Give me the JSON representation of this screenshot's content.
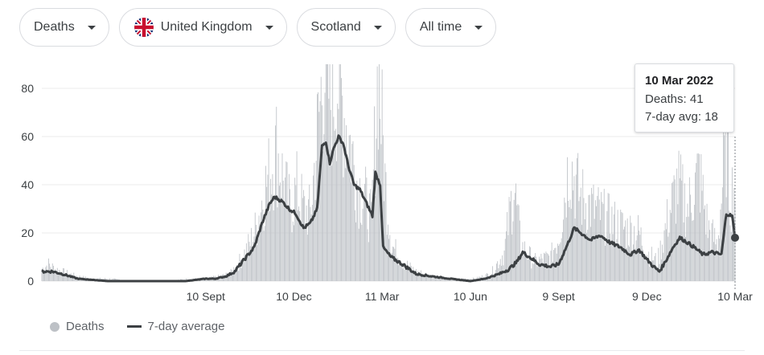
{
  "filters": [
    {
      "label": "Deaths"
    },
    {
      "label": "United Kingdom",
      "icon": "uk-flag-icon"
    },
    {
      "label": "Scotland"
    },
    {
      "label": "All time"
    }
  ],
  "tooltip": {
    "date": "10 Mar 2022",
    "deaths_line": "Deaths: 41",
    "avg_line": "7-day avg: 18"
  },
  "legend": {
    "deaths": "Deaths",
    "avg": "7-day average"
  },
  "colors": {
    "bars": "#bdc1c6",
    "line": "#3c4043",
    "grid": "#ebebeb"
  },
  "chart_data": {
    "type": "bar",
    "x_axis_type": "date",
    "x_range": [
      "2020-03-25",
      "2022-03-10"
    ],
    "y_range": [
      0,
      90
    ],
    "y_ticks": [
      0,
      20,
      40,
      60,
      80
    ],
    "x_ticks": [
      {
        "date": "2020-09-10",
        "label": "10 Sept"
      },
      {
        "date": "2020-12-10",
        "label": "10 Dec"
      },
      {
        "date": "2021-03-11",
        "label": "11 Mar"
      },
      {
        "date": "2021-06-10",
        "label": "10 Jun"
      },
      {
        "date": "2021-09-09",
        "label": "9 Sept"
      },
      {
        "date": "2021-12-09",
        "label": "9 Dec"
      },
      {
        "date": "2022-03-10",
        "label": "10 Mar"
      }
    ],
    "highlight": {
      "date": "2022-03-10",
      "deaths": 41,
      "avg": 18
    },
    "series": [
      {
        "name": "Deaths",
        "kind": "bars",
        "points": [
          [
            "2020-03-25",
            5
          ],
          [
            "2020-04-01",
            7
          ],
          [
            "2020-04-08",
            5
          ],
          [
            "2020-04-15",
            4
          ],
          [
            "2020-04-22",
            3
          ],
          [
            "2020-05-01",
            2
          ],
          [
            "2020-05-15",
            1
          ],
          [
            "2020-06-01",
            1
          ],
          [
            "2020-07-01",
            0
          ],
          [
            "2020-08-01",
            0
          ],
          [
            "2020-08-25",
            1
          ],
          [
            "2020-09-10",
            1
          ],
          [
            "2020-09-25",
            2
          ],
          [
            "2020-10-05",
            3
          ],
          [
            "2020-10-15",
            8
          ],
          [
            "2020-10-25",
            15
          ],
          [
            "2020-11-01",
            22
          ],
          [
            "2020-11-08",
            35
          ],
          [
            "2020-11-15",
            45
          ],
          [
            "2020-11-22",
            55
          ],
          [
            "2020-11-29",
            42
          ],
          [
            "2020-12-06",
            30
          ],
          [
            "2020-12-13",
            38
          ],
          [
            "2020-12-20",
            30
          ],
          [
            "2020-12-27",
            28
          ],
          [
            "2021-01-03",
            60
          ],
          [
            "2021-01-10",
            90
          ],
          [
            "2021-01-17",
            75
          ],
          [
            "2021-01-24",
            85
          ],
          [
            "2021-01-31",
            70
          ],
          [
            "2021-02-07",
            55
          ],
          [
            "2021-02-14",
            40
          ],
          [
            "2021-02-21",
            35
          ],
          [
            "2021-02-28",
            25
          ],
          [
            "2021-03-07",
            90
          ],
          [
            "2021-03-14",
            42
          ],
          [
            "2021-03-21",
            15
          ],
          [
            "2021-04-01",
            8
          ],
          [
            "2021-04-15",
            4
          ],
          [
            "2021-05-01",
            2
          ],
          [
            "2021-05-15",
            1
          ],
          [
            "2021-06-01",
            1
          ],
          [
            "2021-06-15",
            1
          ],
          [
            "2021-07-01",
            3
          ],
          [
            "2021-07-15",
            12
          ],
          [
            "2021-07-25",
            40
          ],
          [
            "2021-08-01",
            15
          ],
          [
            "2021-08-15",
            8
          ],
          [
            "2021-09-01",
            10
          ],
          [
            "2021-09-10",
            20
          ],
          [
            "2021-09-20",
            50
          ],
          [
            "2021-10-01",
            35
          ],
          [
            "2021-10-15",
            30
          ],
          [
            "2021-11-01",
            25
          ],
          [
            "2021-11-15",
            22
          ],
          [
            "2021-12-01",
            20
          ],
          [
            "2021-12-09",
            12
          ],
          [
            "2021-12-20",
            8
          ],
          [
            "2022-01-01",
            28
          ],
          [
            "2022-01-10",
            40
          ],
          [
            "2022-01-20",
            30
          ],
          [
            "2022-02-01",
            45
          ],
          [
            "2022-02-10",
            22
          ],
          [
            "2022-02-20",
            15
          ],
          [
            "2022-03-01",
            60
          ],
          [
            "2022-03-05",
            35
          ],
          [
            "2022-03-10",
            41
          ]
        ]
      },
      {
        "name": "7-day average",
        "kind": "line",
        "points": [
          [
            "2020-03-25",
            4
          ],
          [
            "2020-04-05",
            4
          ],
          [
            "2020-04-15",
            3
          ],
          [
            "2020-05-01",
            1
          ],
          [
            "2020-06-01",
            0
          ],
          [
            "2020-08-20",
            0
          ],
          [
            "2020-09-10",
            1
          ],
          [
            "2020-09-20",
            1
          ],
          [
            "2020-10-01",
            2
          ],
          [
            "2020-10-10",
            4
          ],
          [
            "2020-10-20",
            9
          ],
          [
            "2020-10-30",
            14
          ],
          [
            "2020-11-08",
            25
          ],
          [
            "2020-11-15",
            32
          ],
          [
            "2020-11-20",
            35
          ],
          [
            "2020-11-28",
            33
          ],
          [
            "2020-12-05",
            30
          ],
          [
            "2020-12-12",
            28
          ],
          [
            "2020-12-20",
            22
          ],
          [
            "2020-12-27",
            24
          ],
          [
            "2021-01-03",
            30
          ],
          [
            "2021-01-08",
            56
          ],
          [
            "2021-01-12",
            58
          ],
          [
            "2021-01-16",
            49
          ],
          [
            "2021-01-20",
            55
          ],
          [
            "2021-01-25",
            60
          ],
          [
            "2021-01-30",
            57
          ],
          [
            "2021-02-04",
            48
          ],
          [
            "2021-02-10",
            40
          ],
          [
            "2021-02-16",
            38
          ],
          [
            "2021-02-22",
            33
          ],
          [
            "2021-03-01",
            27
          ],
          [
            "2021-03-04",
            45
          ],
          [
            "2021-03-09",
            40
          ],
          [
            "2021-03-12",
            14
          ],
          [
            "2021-03-20",
            10
          ],
          [
            "2021-04-01",
            7
          ],
          [
            "2021-04-15",
            3
          ],
          [
            "2021-05-01",
            2
          ],
          [
            "2021-05-20",
            1
          ],
          [
            "2021-06-10",
            0
          ],
          [
            "2021-06-25",
            1
          ],
          [
            "2021-07-10",
            3
          ],
          [
            "2021-07-20",
            5
          ],
          [
            "2021-07-28",
            8
          ],
          [
            "2021-08-03",
            12
          ],
          [
            "2021-08-10",
            10
          ],
          [
            "2021-08-20",
            7
          ],
          [
            "2021-09-01",
            6
          ],
          [
            "2021-09-09",
            7
          ],
          [
            "2021-09-18",
            15
          ],
          [
            "2021-09-25",
            22
          ],
          [
            "2021-10-02",
            20
          ],
          [
            "2021-10-12",
            17
          ],
          [
            "2021-10-22",
            19
          ],
          [
            "2021-11-01",
            16
          ],
          [
            "2021-11-12",
            14
          ],
          [
            "2021-11-22",
            11
          ],
          [
            "2021-12-01",
            13
          ],
          [
            "2021-12-09",
            9
          ],
          [
            "2021-12-16",
            6
          ],
          [
            "2021-12-22",
            4
          ],
          [
            "2021-12-28",
            8
          ],
          [
            "2022-01-05",
            14
          ],
          [
            "2022-01-12",
            18
          ],
          [
            "2022-01-20",
            16
          ],
          [
            "2022-01-27",
            14
          ],
          [
            "2022-02-05",
            11
          ],
          [
            "2022-02-14",
            12
          ],
          [
            "2022-02-24",
            11
          ],
          [
            "2022-03-01",
            28
          ],
          [
            "2022-03-07",
            27
          ],
          [
            "2022-03-10",
            18
          ]
        ]
      }
    ]
  }
}
